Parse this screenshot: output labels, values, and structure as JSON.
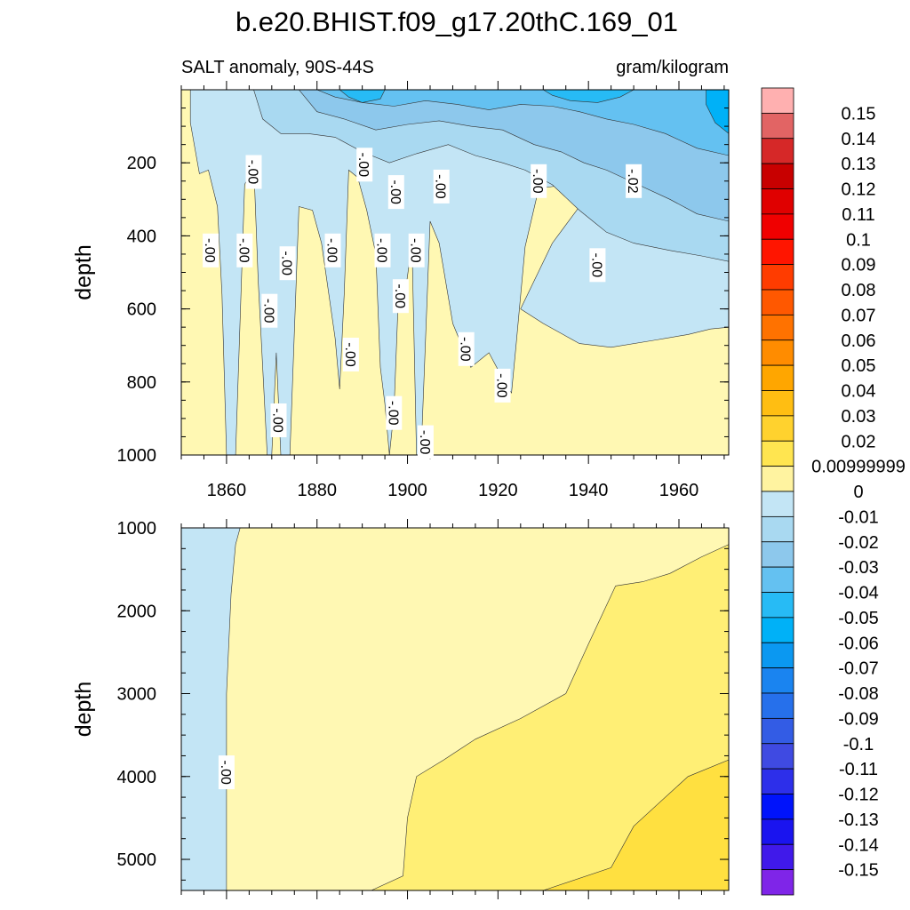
{
  "title": "b.e20.BHIST.f09_g17.20thC.169_01",
  "subtitle_left": "SALT anomaly, 90S-44S",
  "subtitle_right": "gram/kilogram",
  "colors": {
    "pos": [
      "#fff8b3",
      "#ffef75",
      "#ffe040",
      "#ffcc33",
      "#ffb60d",
      "#ff9e00",
      "#ff8400",
      "#ff6a00",
      "#ff5000",
      "#ff2d00",
      "#ff0000",
      "#ee0000",
      "#d80000",
      "#c81818",
      "#e26464",
      "#ffb0b0"
    ],
    "neg": [
      "#c3e5f5",
      "#a9d9f1",
      "#8dc8ec",
      "#64c1f1",
      "#27bbf5",
      "#00b1f7",
      "#0b98f1",
      "#1a84f0",
      "#2670eb",
      "#335ce5",
      "#3f4ae2",
      "#2d2fea",
      "#0013fb",
      "#1a14ef",
      "#4019ea",
      "#7f25e8"
    ]
  },
  "chart_data": [
    {
      "type": "heatmap",
      "name": "upper",
      "xlim": [
        1850,
        1971
      ],
      "ylim": [
        0,
        1000
      ],
      "y_reversed": true,
      "ylabel": "depth",
      "xticks": [
        "1860",
        "1880",
        "1900",
        "1920",
        "1940",
        "1960"
      ],
      "yticks": [
        "200",
        "400",
        "600",
        "800",
        "1000"
      ],
      "contour_labels": [
        {
          "text": "-.00",
          "x": 1856.5,
          "y": 440
        },
        {
          "text": "-.00",
          "x": 1864,
          "y": 440
        },
        {
          "text": "-.00",
          "x": 1866,
          "y": 225
        },
        {
          "text": "-.00",
          "x": 1869.5,
          "y": 605
        },
        {
          "text": "-.00",
          "x": 1873.5,
          "y": 475
        },
        {
          "text": "-.00",
          "x": 1871.5,
          "y": 905
        },
        {
          "text": "-.00",
          "x": 1883.5,
          "y": 440
        },
        {
          "text": "-.00",
          "x": 1887.5,
          "y": 725
        },
        {
          "text": "-.00",
          "x": 1890.5,
          "y": 205
        },
        {
          "text": "-.00",
          "x": 1894.5,
          "y": 440
        },
        {
          "text": "-.00",
          "x": 1897.5,
          "y": 280
        },
        {
          "text": "-.00",
          "x": 1898.5,
          "y": 565
        },
        {
          "text": "-.00",
          "x": 1897,
          "y": 885
        },
        {
          "text": "-.00",
          "x": 1902,
          "y": 440
        },
        {
          "text": "-.00",
          "x": 1907.5,
          "y": 265
        },
        {
          "text": "-.00",
          "x": 1904,
          "y": 965
        },
        {
          "text": "-.00",
          "x": 1913,
          "y": 710
        },
        {
          "text": "-.00",
          "x": 1921,
          "y": 810
        },
        {
          "text": "-.00",
          "x": 1929,
          "y": 250
        },
        {
          "text": "-.00",
          "x": 1942,
          "y": 480
        },
        {
          "text": "-.02",
          "x": 1950,
          "y": 250
        }
      ],
      "levels": [
        {
          "value": 0.00999999,
          "region": "y from 0 to 1000; x from 1850 to 1971"
        },
        {
          "value": -0.01,
          "region": "upper 1000 m with deep fingers near 1858, 1866, 1869, 1871, 1884, 1893, 1896, 1903 and 1912-1924"
        },
        {
          "value": -0.02,
          "region": "y from 0 to 500; x from 1866 to 1971"
        },
        {
          "value": -0.03,
          "region": "y from 0 to 400; x from 1876 to 1971"
        },
        {
          "value": -0.04,
          "region": "y from 0 to 180; x from 1880 to 1971"
        },
        {
          "value": -0.05,
          "region": "y from 0 to 100; x from 1885 to 1971"
        }
      ]
    },
    {
      "type": "heatmap",
      "name": "lower",
      "xlim": [
        1850,
        1971
      ],
      "ylim": [
        1000,
        5375
      ],
      "y_reversed": true,
      "ylabel": "depth",
      "yticks": [
        "1000",
        "2000",
        "3000",
        "4000",
        "5000"
      ],
      "contour_labels": [
        {
          "text": "-.00",
          "x": 1860,
          "y": 3950
        }
      ],
      "levels": [
        {
          "value": -0.01,
          "region": "x from 1850 to 1860; y from 1000 to 5375"
        },
        {
          "value": 0.00999999,
          "region": "x from 1860 to 1971; y from 1000 to 5375"
        },
        {
          "value": 0.02,
          "region": "x from 1892 to 1971; y from 1200 to 5375"
        },
        {
          "value": 0.03,
          "region": "x from 1930 to 1971; y from 3800 to 5375"
        }
      ]
    }
  ],
  "colorbar": {
    "labels": [
      "0.15",
      "0.14",
      "0.13",
      "0.12",
      "0.11",
      "0.1",
      "0.09",
      "0.08",
      "0.07",
      "0.06",
      "0.05",
      "0.04",
      "0.03",
      "0.02",
      "0.00999999",
      "0",
      "-0.01",
      "-0.02",
      "-0.03",
      "-0.04",
      "-0.05",
      "-0.06",
      "-0.07",
      "-0.08",
      "-0.09",
      "-0.1",
      "-0.11",
      "-0.12",
      "-0.13",
      "-0.14",
      "-0.15"
    ],
    "colors": [
      "#ffb0b0",
      "#e26464",
      "#d62828",
      "#c80000",
      "#e00000",
      "#f00000",
      "#ff1500",
      "#ff3c00",
      "#ff5800",
      "#ff7200",
      "#ff8c00",
      "#ffa600",
      "#ffbe12",
      "#ffd22e",
      "#ffe550",
      "#fff3a0",
      "#c3e5f5",
      "#a9d9f1",
      "#8dc8ec",
      "#64c1f1",
      "#27bbf5",
      "#00b1f7",
      "#0b98f1",
      "#1a84f0",
      "#2670eb",
      "#335ce5",
      "#3f4ae2",
      "#2d2fea",
      "#0013fb",
      "#1a14ef",
      "#4019ea",
      "#7f25e8"
    ]
  }
}
